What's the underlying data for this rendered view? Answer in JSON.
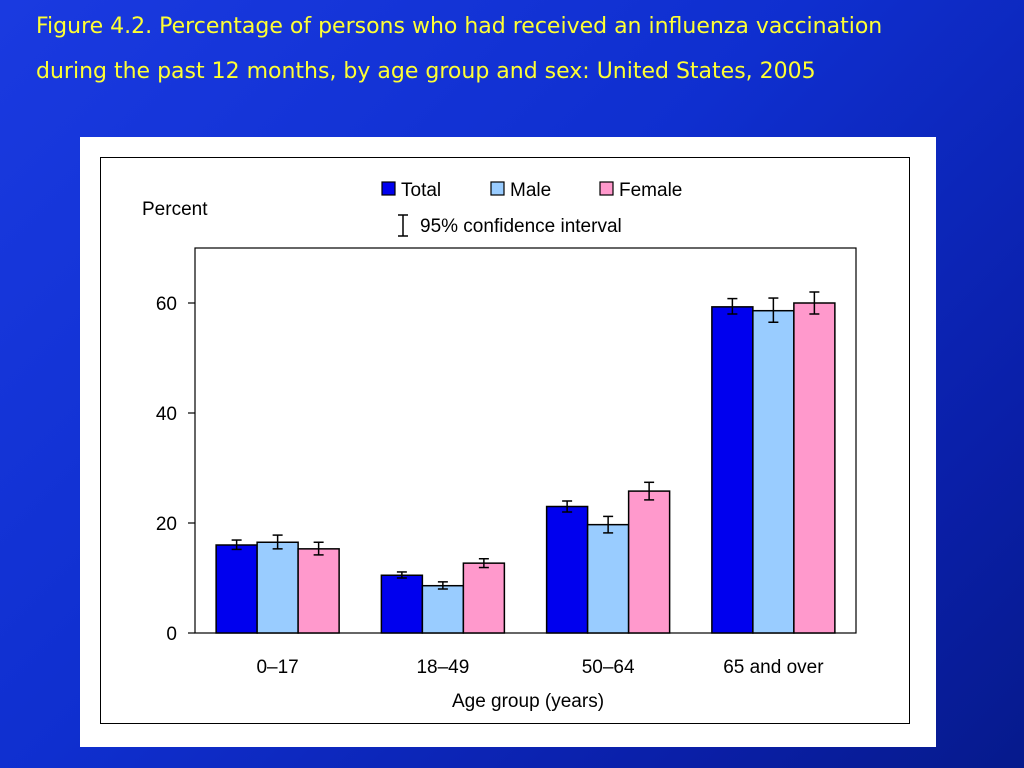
{
  "title": "Figure 4.2. Percentage of persons who had received an influenza vaccination during the past 12 months, by age group and sex: United States, 2005",
  "chart_data": {
    "type": "bar",
    "title": "Figure 4.2. Percentage of persons who had received an influenza vaccination during the past 12 months, by age group and sex: United States, 2005",
    "ylabel": "Percent",
    "xlabel": "Age group (years)",
    "ylim": [
      0,
      70
    ],
    "yticks": [
      0,
      20,
      40,
      60
    ],
    "grid": false,
    "legend_position": "top-center",
    "categories": [
      "0–17",
      "18–49",
      "50–64",
      "65 and over"
    ],
    "series": [
      {
        "name": "Total",
        "color": "#0000ee",
        "values": [
          16,
          10.5,
          23,
          59.3
        ],
        "ci_low": [
          15.2,
          10.0,
          22.0,
          58.0
        ],
        "ci_high": [
          16.9,
          11.1,
          24.0,
          60.8
        ]
      },
      {
        "name": "Male",
        "color": "#99ccff",
        "values": [
          16.5,
          8.6,
          19.7,
          58.6
        ],
        "ci_low": [
          15.3,
          8.0,
          18.2,
          56.5
        ],
        "ci_high": [
          17.8,
          9.3,
          21.2,
          60.9
        ]
      },
      {
        "name": "Female",
        "color": "#ff99cc",
        "values": [
          15.3,
          12.7,
          25.8,
          60.0
        ],
        "ci_low": [
          14.2,
          11.9,
          24.2,
          58.0
        ],
        "ci_high": [
          16.5,
          13.5,
          27.4,
          62.0
        ]
      }
    ],
    "ci_legend_label": "95% confidence interval"
  }
}
